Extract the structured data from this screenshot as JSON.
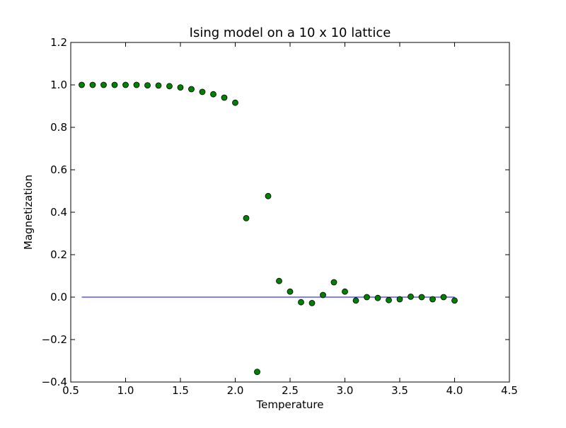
{
  "chart_data": {
    "type": "scatter",
    "title": "Ising model on a 10 x 10 lattice",
    "xlabel": "Temperature",
    "ylabel": "Magnetization",
    "xlim": [
      0.5,
      4.5
    ],
    "ylim": [
      -0.4,
      1.2
    ],
    "grid": false,
    "x_ticks": [
      0.5,
      1.0,
      1.5,
      2.0,
      2.5,
      3.0,
      3.5,
      4.0,
      4.5
    ],
    "y_ticks": [
      -0.4,
      -0.2,
      0.0,
      0.2,
      0.4,
      0.6,
      0.8,
      1.0,
      1.2
    ],
    "x_tick_labels": [
      "0.5",
      "1.0",
      "1.5",
      "2.0",
      "2.5",
      "3.0",
      "3.5",
      "4.0",
      "4.5"
    ],
    "y_tick_labels": [
      "−0.4",
      "−0.2",
      "0.0",
      "0.2",
      "0.4",
      "0.6",
      "0.8",
      "1.0",
      "1.2"
    ],
    "series": [
      {
        "kind": "line",
        "color": "#0000ff",
        "x": [
          0.6,
          4.0
        ],
        "y": [
          0.0,
          0.0
        ]
      },
      {
        "kind": "scatter",
        "color": "#008000",
        "x": [
          0.6,
          0.7,
          0.8,
          0.9,
          1.0,
          1.1,
          1.2,
          1.3,
          1.4,
          1.5,
          1.6,
          1.7,
          1.8,
          1.9,
          2.0,
          2.1,
          2.2,
          2.3,
          2.4,
          2.5,
          2.6,
          2.7,
          2.8,
          2.9,
          3.0,
          3.1,
          3.2,
          3.3,
          3.4,
          3.5,
          3.6,
          3.7,
          3.8,
          3.9,
          4.0
        ],
        "y": [
          1.0,
          1.0,
          1.0,
          1.0,
          1.0,
          1.0,
          0.998,
          0.997,
          0.994,
          0.988,
          0.98,
          0.967,
          0.956,
          0.94,
          0.916,
          0.372,
          -0.352,
          0.476,
          0.076,
          0.026,
          -0.024,
          -0.028,
          0.01,
          0.07,
          0.026,
          -0.016,
          0.0,
          -0.004,
          -0.014,
          -0.01,
          0.002,
          0.0,
          -0.01,
          0.0,
          -0.016
        ]
      }
    ]
  }
}
